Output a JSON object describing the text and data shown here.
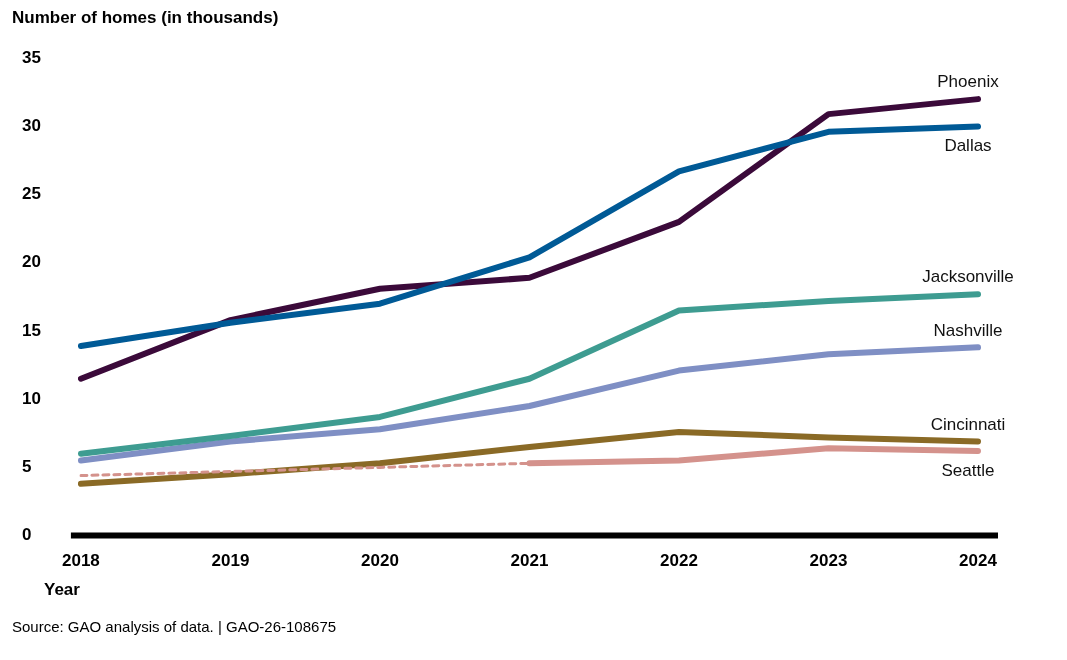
{
  "chart_data": {
    "type": "line",
    "ylabel": "Number of homes (in thousands)",
    "xlabel": "Year",
    "categories": [
      "2018",
      "2019",
      "2020",
      "2021",
      "2022",
      "2023",
      "2024"
    ],
    "ylim": [
      0,
      35
    ],
    "yticks": [
      0,
      5,
      10,
      15,
      20,
      25,
      30,
      35
    ],
    "grid": false,
    "legend": false,
    "marker": "none",
    "series": [
      {
        "name": "Dallas",
        "color": "#005a96",
        "values": [
          13.9,
          15.6,
          17.0,
          20.4,
          26.7,
          29.6,
          30.0
        ]
      },
      {
        "name": "Phoenix",
        "color": "#3b0a3a",
        "values": [
          11.5,
          15.8,
          18.1,
          18.9,
          23.0,
          30.9,
          32.0
        ]
      },
      {
        "name": "Jacksonville",
        "color": "#3e9c91",
        "values": [
          6.0,
          7.3,
          8.7,
          11.5,
          16.5,
          17.2,
          17.7
        ]
      },
      {
        "name": "Nashville",
        "color": "#7f8fc4",
        "values": [
          5.5,
          6.9,
          7.8,
          9.5,
          12.1,
          13.3,
          13.8
        ]
      },
      {
        "color": "#d4928c",
        "line_style": "dashed",
        "values": [
          4.4,
          4.7,
          5.0,
          5.3,
          null,
          null,
          null
        ]
      },
      {
        "name": "Seattle",
        "color": "#d4928c",
        "values": [
          null,
          null,
          null,
          5.3,
          5.5,
          6.4,
          6.2
        ]
      },
      {
        "name": "Cincinnati",
        "color": "#8a6a26",
        "values": [
          3.8,
          4.5,
          5.3,
          6.5,
          7.6,
          7.2,
          6.9
        ]
      }
    ],
    "annotations": [
      "Source: GAO analysis of data. | GAO-26-108675"
    ]
  }
}
